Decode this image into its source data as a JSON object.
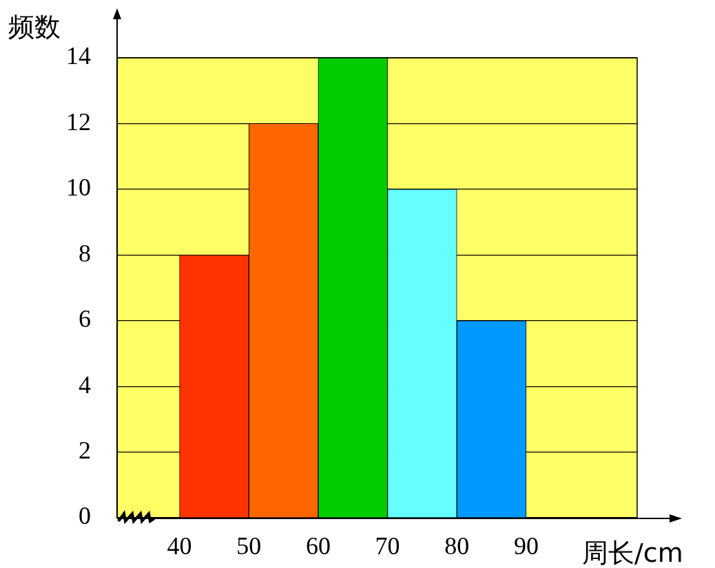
{
  "chart_data": {
    "type": "histogram",
    "bins": [
      40,
      50,
      60,
      70,
      80,
      90
    ],
    "values": [
      8,
      12,
      14,
      10,
      6
    ],
    "colors": [
      "#ff3300",
      "#ff6600",
      "#00cc00",
      "#66ffff",
      "#0099ff"
    ],
    "xlabel": "周长/cm",
    "ylabel": "频数",
    "xlim": [
      31,
      106
    ],
    "xticks": [
      40,
      50,
      60,
      70,
      80,
      90
    ],
    "ylim": [
      0,
      14
    ],
    "yticks": [
      0,
      2,
      4,
      6,
      8,
      10,
      12,
      14
    ],
    "grid": "y",
    "legend": false
  }
}
